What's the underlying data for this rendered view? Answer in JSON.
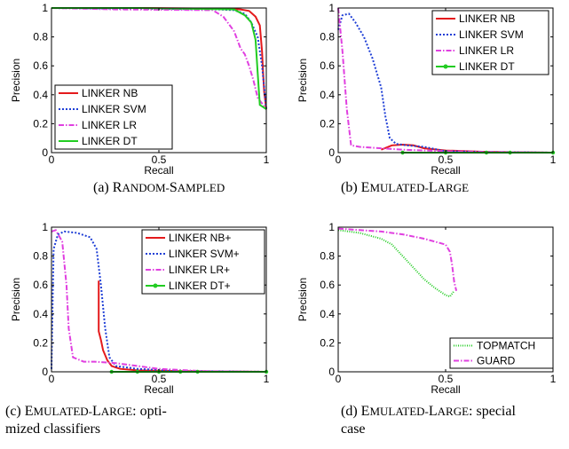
{
  "chart_data": [
    {
      "type": "line",
      "xlabel": "Recall",
      "ylabel": "Precision",
      "xlim": [
        0,
        1
      ],
      "ylim": [
        0,
        1
      ],
      "xticks": [
        0,
        0.5,
        1
      ],
      "yticks": [
        0,
        0.2,
        0.4,
        0.6,
        0.8,
        1
      ],
      "xtick_labels": [
        "0",
        "0.5",
        "1"
      ],
      "ytick_labels": [
        "0",
        "0.2",
        "0.4",
        "0.6",
        "0.8",
        "1"
      ],
      "legend_position": "bottom-left",
      "caption_prefix": "(a) ",
      "caption_sc_big": [
        "R",
        "S"
      ],
      "caption_sc_small": [
        "ANDOM-",
        "AMPLED"
      ],
      "caption_rest": "",
      "caption_line2": "",
      "series": [
        {
          "name": "LINKER NB",
          "color": "#e41a1c",
          "dash": "solid",
          "marker": false,
          "x": [
            0,
            0.4,
            0.8,
            0.88,
            0.92,
            0.95,
            0.97,
            0.98,
            0.985,
            0.99,
            1.0
          ],
          "y": [
            1,
            1,
            0.995,
            0.99,
            0.98,
            0.94,
            0.88,
            0.7,
            0.55,
            0.42,
            0.3
          ]
        },
        {
          "name": "LINKER SVM",
          "color": "#1f3fd6",
          "dash": "dotted",
          "marker": false,
          "x": [
            0,
            0.4,
            0.78,
            0.85,
            0.9,
            0.93,
            0.96,
            0.98,
            0.99,
            1.0
          ],
          "y": [
            1,
            0.995,
            0.99,
            0.985,
            0.96,
            0.9,
            0.8,
            0.6,
            0.45,
            0.3
          ]
        },
        {
          "name": "LINKER LR",
          "color": "#e040e0",
          "dash": "dashdot",
          "marker": false,
          "x": [
            0,
            0.3,
            0.75,
            0.8,
            0.85,
            0.88,
            0.9,
            0.92,
            0.94,
            0.96,
            1.0
          ],
          "y": [
            1,
            0.99,
            0.985,
            0.94,
            0.84,
            0.72,
            0.68,
            0.6,
            0.5,
            0.38,
            0.3
          ]
        },
        {
          "name": "LINKER DT",
          "color": "#22cc22",
          "dash": "solid",
          "marker": false,
          "x": [
            0,
            0.4,
            0.85,
            0.9,
            0.93,
            0.95,
            0.96,
            0.97,
            0.98,
            1.0
          ],
          "y": [
            1,
            1,
            0.99,
            0.95,
            0.9,
            0.78,
            0.55,
            0.33,
            0.32,
            0.3
          ]
        }
      ]
    },
    {
      "type": "line",
      "xlabel": "Recall",
      "ylabel": "Precision",
      "xlim": [
        0,
        1
      ],
      "ylim": [
        0,
        1
      ],
      "xticks": [
        0,
        0.5,
        1
      ],
      "yticks": [
        0,
        0.2,
        0.4,
        0.6,
        0.8,
        1
      ],
      "xtick_labels": [
        "0",
        "0.5",
        "1"
      ],
      "ytick_labels": [
        "0",
        "0.2",
        "0.4",
        "0.6",
        "0.8",
        "1"
      ],
      "legend_position": "top-right",
      "caption_prefix": "(b) ",
      "caption_sc_big": [
        "E",
        "L"
      ],
      "caption_sc_small": [
        "MULATED-",
        "ARGE"
      ],
      "caption_rest": "",
      "caption_line2": "",
      "series": [
        {
          "name": "LINKER NB",
          "color": "#e41a1c",
          "dash": "solid",
          "marker": false,
          "x": [
            0.2,
            0.25,
            0.3,
            0.35,
            0.4,
            0.5,
            0.6,
            0.7,
            1.0
          ],
          "y": [
            0.02,
            0.05,
            0.055,
            0.05,
            0.03,
            0.015,
            0.01,
            0.005,
            0.0
          ]
        },
        {
          "name": "LINKER SVM",
          "color": "#1f3fd6",
          "dash": "dotted",
          "marker": false,
          "x": [
            0,
            0.02,
            0.05,
            0.08,
            0.12,
            0.16,
            0.2,
            0.22,
            0.24,
            0.27,
            0.32,
            0.4,
            0.5,
            0.7,
            1.0
          ],
          "y": [
            0.85,
            0.95,
            0.96,
            0.9,
            0.8,
            0.65,
            0.45,
            0.25,
            0.1,
            0.06,
            0.05,
            0.04,
            0.01,
            0.005,
            0.0
          ]
        },
        {
          "name": "LINKER LR",
          "color": "#e040e0",
          "dash": "dashdot",
          "marker": false,
          "x": [
            0,
            0.02,
            0.04,
            0.06,
            0.1,
            0.2,
            0.3,
            0.5,
            0.7,
            1.0
          ],
          "y": [
            1,
            0.7,
            0.3,
            0.05,
            0.04,
            0.03,
            0.02,
            0.01,
            0.005,
            0.0
          ]
        },
        {
          "name": "LINKER DT",
          "color": "#22cc22",
          "dash": "solid",
          "marker": true,
          "x": [
            0.3,
            0.5,
            0.69,
            0.8,
            1.0
          ],
          "y": [
            0.0,
            0.0,
            0.0,
            0.0,
            0.0
          ]
        }
      ]
    },
    {
      "type": "line",
      "xlabel": "Recall",
      "ylabel": "Precision",
      "xlim": [
        0,
        1
      ],
      "ylim": [
        0,
        1
      ],
      "xticks": [
        0,
        0.5,
        1
      ],
      "yticks": [
        0,
        0.2,
        0.4,
        0.6,
        0.8,
        1
      ],
      "xtick_labels": [
        "0",
        "0.5",
        "1"
      ],
      "ytick_labels": [
        "0",
        "0.2",
        "0.4",
        "0.6",
        "0.8",
        "1"
      ],
      "legend_position": "top-right",
      "caption_prefix": "(c) ",
      "caption_sc_big": [
        "E",
        "L"
      ],
      "caption_sc_small": [
        "MULATED-",
        "ARGE"
      ],
      "caption_rest": ":   opti-",
      "caption_line2": "mized classifiers",
      "series": [
        {
          "name": "LINKER NB+",
          "color": "#e41a1c",
          "dash": "solid",
          "marker": false,
          "x": [
            0.22,
            0.22,
            0.23,
            0.24,
            0.26,
            0.28,
            0.32,
            0.4,
            0.6,
            1.0
          ],
          "y": [
            0.63,
            0.28,
            0.22,
            0.15,
            0.08,
            0.04,
            0.02,
            0.01,
            0.005,
            0.0
          ]
        },
        {
          "name": "LINKER SVM+",
          "color": "#1f3fd6",
          "dash": "dotted",
          "marker": false,
          "x": [
            0,
            0.01,
            0.03,
            0.06,
            0.12,
            0.18,
            0.21,
            0.23,
            0.25,
            0.27,
            0.3,
            0.4,
            0.6,
            1.0
          ],
          "y": [
            0.02,
            0.85,
            0.95,
            0.97,
            0.96,
            0.93,
            0.85,
            0.6,
            0.3,
            0.1,
            0.04,
            0.02,
            0.005,
            0.0
          ]
        },
        {
          "name": "LINKER LR+",
          "color": "#e040e0",
          "dash": "dashdot",
          "marker": false,
          "x": [
            0,
            0.02,
            0.05,
            0.07,
            0.08,
            0.1,
            0.15,
            0.2,
            0.3,
            0.5,
            0.7,
            1.0
          ],
          "y": [
            0.97,
            0.98,
            0.9,
            0.6,
            0.3,
            0.1,
            0.07,
            0.07,
            0.06,
            0.02,
            0.005,
            0.0
          ]
        },
        {
          "name": "LINKER DT+",
          "color": "#22cc22",
          "dash": "solid",
          "marker": true,
          "x": [
            0.28,
            0.4,
            0.5,
            0.6,
            0.68,
            1.0
          ],
          "y": [
            0.0,
            0.0,
            0.0,
            0.0,
            0.0,
            0.0
          ]
        }
      ]
    },
    {
      "type": "line",
      "xlabel": "Recall",
      "ylabel": "Precision",
      "xlim": [
        0,
        1
      ],
      "ylim": [
        0,
        1
      ],
      "xticks": [
        0,
        0.5,
        1
      ],
      "yticks": [
        0,
        0.2,
        0.4,
        0.6,
        0.8,
        1
      ],
      "xtick_labels": [
        "0",
        "0.5",
        "1"
      ],
      "ytick_labels": [
        "0",
        "0.2",
        "0.4",
        "0.6",
        "0.8",
        "1"
      ],
      "legend_position": "bottom-right",
      "caption_prefix": "(d) ",
      "caption_sc_big": [
        "E",
        "L"
      ],
      "caption_sc_small": [
        "MULATED-",
        "ARGE"
      ],
      "caption_rest": ":  special",
      "caption_line2": "case",
      "series": [
        {
          "name": "TOPMATCH",
          "color": "#22cc22",
          "dash": "finedot",
          "marker": false,
          "x": [
            0,
            0.1,
            0.2,
            0.25,
            0.3,
            0.35,
            0.4,
            0.45,
            0.5,
            0.52,
            0.53,
            0.54
          ],
          "y": [
            0.98,
            0.96,
            0.92,
            0.88,
            0.8,
            0.72,
            0.64,
            0.58,
            0.53,
            0.52,
            0.54,
            0.56
          ]
        },
        {
          "name": "GUARD",
          "color": "#e040e0",
          "dash": "dashdot",
          "marker": false,
          "x": [
            0,
            0.1,
            0.2,
            0.3,
            0.4,
            0.45,
            0.5,
            0.52,
            0.53,
            0.54,
            0.55
          ],
          "y": [
            0.99,
            0.98,
            0.97,
            0.95,
            0.92,
            0.9,
            0.88,
            0.83,
            0.74,
            0.62,
            0.56
          ]
        }
      ]
    }
  ]
}
